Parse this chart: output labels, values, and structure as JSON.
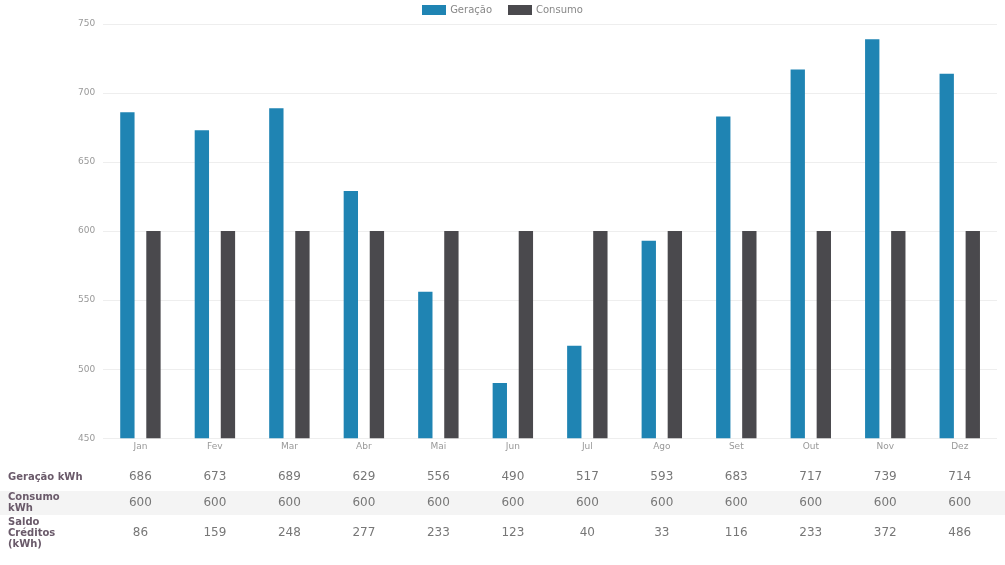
{
  "chart_data": {
    "type": "bar",
    "categories": [
      "Jan",
      "Fev",
      "Mar",
      "Abr",
      "Mai",
      "Jun",
      "Jul",
      "Ago",
      "Set",
      "Out",
      "Nov",
      "Dez"
    ],
    "series": [
      {
        "name": "Geração",
        "color": "#1f84b3",
        "values": [
          686,
          673,
          689,
          629,
          556,
          490,
          517,
          593,
          683,
          717,
          739,
          714
        ]
      },
      {
        "name": "Consumo",
        "color": "#4a494d",
        "values": [
          600,
          600,
          600,
          600,
          600,
          600,
          600,
          600,
          600,
          600,
          600,
          600
        ]
      }
    ],
    "annotations": [
      "Geração kWh",
      "Consumo kWh",
      "Saldo Créditos (kWh)",
      "86",
      "159",
      "248",
      "277",
      "233",
      "123",
      "40",
      "33",
      "116",
      "233",
      "372",
      "486"
    ],
    "ylim": [
      450,
      750
    ],
    "yticks": [
      450,
      500,
      550,
      600,
      650,
      700,
      750
    ],
    "grid": "y",
    "legend": "top",
    "data_labels": true
  }
}
